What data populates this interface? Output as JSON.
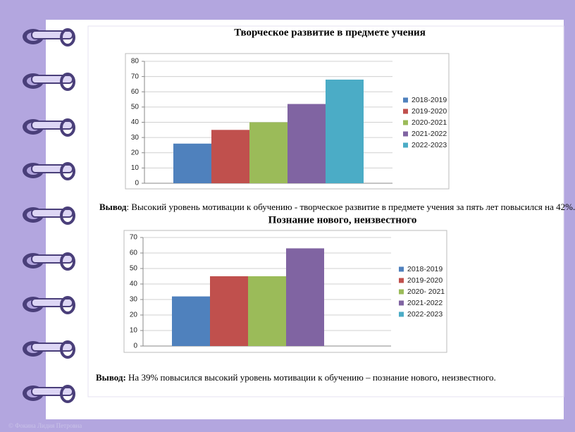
{
  "chart_data": [
    {
      "type": "bar",
      "title": "Творческое развитие в предмете учения",
      "categories": [
        null
      ],
      "series": [
        {
          "name": "2018-2019",
          "color": "#4f81bd",
          "values": [
            26
          ]
        },
        {
          "name": "2019-2020",
          "color": "#c0504d",
          "values": [
            35
          ]
        },
        {
          "name": "2020-2021",
          "color": "#9bbb59",
          "values": [
            40
          ]
        },
        {
          "name": "2021-2022",
          "color": "#8064a2",
          "values": [
            52
          ]
        },
        {
          "name": "2022-2023",
          "color": "#4bacc6",
          "values": [
            68
          ]
        }
      ],
      "ylim": [
        0,
        80
      ],
      "yticks": [
        0,
        10,
        20,
        30,
        40,
        50,
        60,
        70,
        80
      ],
      "grid": true,
      "legend": "right"
    },
    {
      "type": "bar",
      "title": "Познание нового, неизвестного",
      "categories": [
        null
      ],
      "series": [
        {
          "name": "2018-2019",
          "color": "#4f81bd",
          "values": [
            32
          ]
        },
        {
          "name": "2019-2020",
          "color": "#c0504d",
          "values": [
            45
          ]
        },
        {
          "name": "2020- 2021",
          "color": "#9bbb59",
          "values": [
            45
          ]
        },
        {
          "name": "2021-2022",
          "color": "#8064a2",
          "values": [
            63
          ]
        },
        {
          "name": "2022-2023",
          "color": "#4bacc6",
          "values": [
            null
          ]
        }
      ],
      "ylim": [
        0,
        70
      ],
      "yticks": [
        0,
        10,
        20,
        30,
        40,
        50,
        60,
        70
      ],
      "grid": true,
      "legend": "right"
    }
  ],
  "conclusions": [
    {
      "label": "Вывод",
      "text": ": Высокий уровень мотивации к обучению - творческое развитие в предмете учения за пять лет  повысился на 42%."
    },
    {
      "label": "Вывод:",
      "text": " На 39%  повысился высокий уровень мотивации к обучению – познание нового, неизвестного."
    }
  ],
  "footer": "© Фокина Лидия Петровна"
}
